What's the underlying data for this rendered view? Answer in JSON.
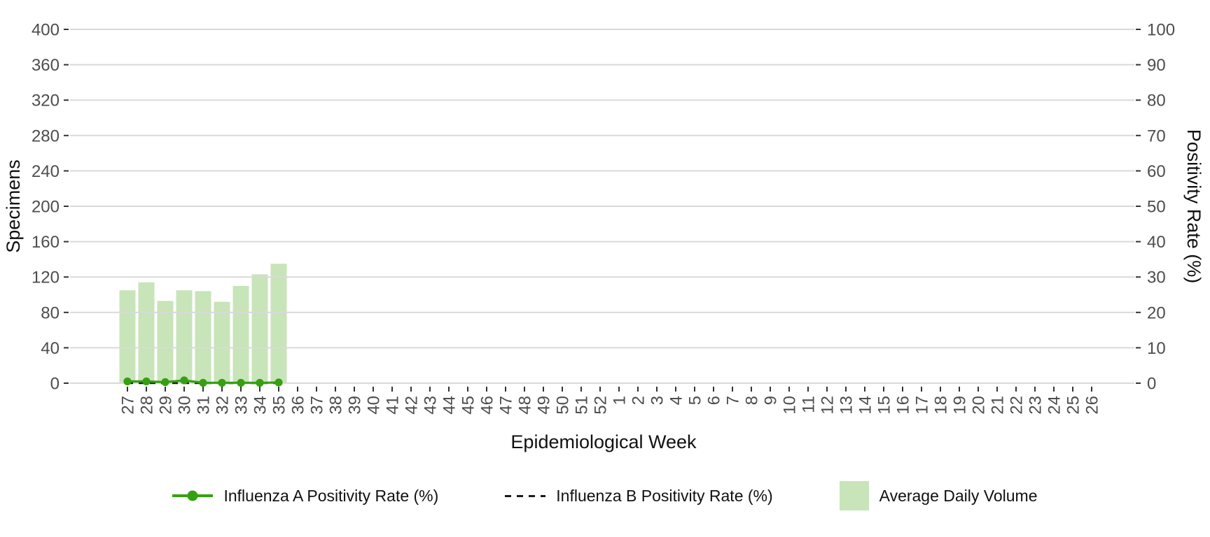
{
  "chart_data": {
    "type": "combo-bar-line",
    "title": "",
    "x_label": "Epidemiological Week",
    "categories": [
      "27",
      "28",
      "29",
      "30",
      "31",
      "32",
      "33",
      "34",
      "35",
      "36",
      "37",
      "38",
      "39",
      "40",
      "41",
      "42",
      "43",
      "44",
      "45",
      "46",
      "47",
      "48",
      "49",
      "50",
      "51",
      "52",
      "1",
      "2",
      "3",
      "4",
      "5",
      "6",
      "7",
      "8",
      "9",
      "10",
      "11",
      "12",
      "13",
      "14",
      "15",
      "16",
      "17",
      "18",
      "19",
      "20",
      "21",
      "22",
      "23",
      "24",
      "25",
      "26"
    ],
    "y_left": {
      "label": "Specimens",
      "min": 0,
      "max": 400,
      "ticks": [
        0,
        40,
        80,
        120,
        160,
        200,
        240,
        280,
        320,
        360,
        400
      ]
    },
    "y_right": {
      "label": "Positivity Rate (%)",
      "min": 0,
      "max": 100,
      "ticks": [
        0,
        10,
        20,
        30,
        40,
        50,
        60,
        70,
        80,
        90,
        100
      ]
    },
    "grid": true,
    "gridline_color": "#d9d9d9",
    "tick_mark_color": "#333333",
    "tick_label_color": "#4d4d4d",
    "legend_position": "bottom",
    "series": [
      {
        "name": "Influenza A Positivity Rate (%)",
        "type": "line",
        "style": "solid-with-markers",
        "axis": "right",
        "color": "#35a011",
        "weeks": [
          "27",
          "28",
          "29",
          "30",
          "31",
          "32",
          "33",
          "34",
          "35"
        ],
        "values": [
          0.5,
          0.5,
          0.3,
          0.8,
          0.1,
          0.1,
          0.1,
          0.1,
          0.2
        ]
      },
      {
        "name": "Influenza B Positivity Rate (%)",
        "type": "line",
        "style": "dashed",
        "axis": "right",
        "color": "#1a1a1a",
        "weeks": [
          "27",
          "28",
          "29",
          "30",
          "31",
          "32",
          "33",
          "34",
          "35"
        ],
        "values": [
          0,
          0,
          0,
          0,
          0,
          0,
          0,
          0,
          0
        ]
      },
      {
        "name": "Average Daily Volume",
        "type": "bar",
        "axis": "left",
        "color": "#c8e4b9",
        "weeks": [
          "27",
          "28",
          "29",
          "30",
          "31",
          "32",
          "33",
          "34",
          "35"
        ],
        "values": [
          105,
          114,
          93,
          105,
          104,
          92,
          110,
          123,
          135
        ]
      }
    ]
  }
}
